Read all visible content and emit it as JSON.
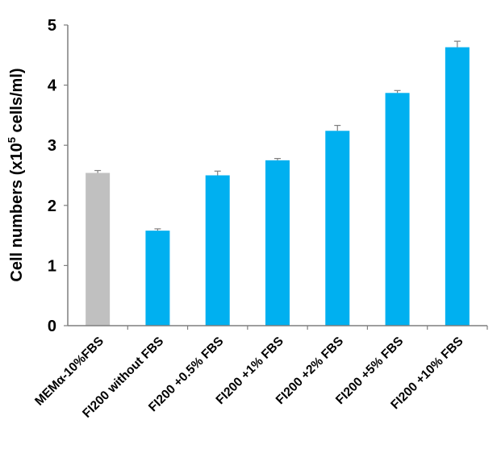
{
  "chart_data": {
    "type": "bar",
    "categories": [
      "MEMα-10%FBS",
      "FI200 without FBS",
      "FI200 +0.5% FBS",
      "FI200 +1% FBS",
      "FI200 +2% FBS",
      "FI200 +5% FBS",
      "FI200 +10% FBS"
    ],
    "values": [
      2.54,
      1.58,
      2.5,
      2.75,
      3.24,
      3.87,
      4.63
    ],
    "errors": [
      0.04,
      0.03,
      0.07,
      0.03,
      0.09,
      0.04,
      0.1
    ],
    "bar_colors": [
      "#c0c0c0",
      "#00b0f0",
      "#00b0f0",
      "#00b0f0",
      "#00b0f0",
      "#00b0f0",
      "#00b0f0"
    ],
    "ylabel_pre": "Cell numbers (x10",
    "ylabel_sup": "5",
    "ylabel_post": " cells/ml)",
    "xlabel": "",
    "ylim": [
      0,
      5
    ],
    "yticks": [
      "0",
      "1",
      "2",
      "3",
      "4",
      "5"
    ],
    "grid": false,
    "legend": "none"
  }
}
